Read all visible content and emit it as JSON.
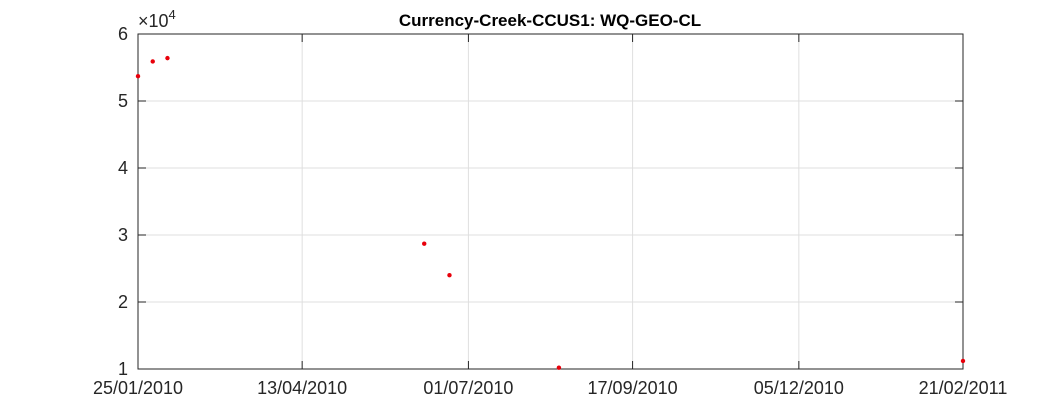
{
  "chart_data": {
    "type": "scatter",
    "title": "Currency-Creek-CCUS1: WQ-GEO-CL",
    "xlabel": "",
    "ylabel": "",
    "x_type": "date",
    "xlim": [
      "2010-01-25",
      "2011-02-21"
    ],
    "ylim": [
      10000,
      60000
    ],
    "y_exponent_label": "×10",
    "y_exponent_power": "4",
    "x_ticks": [
      "2010-01-25",
      "2010-04-13",
      "2010-07-01",
      "2010-09-17",
      "2010-12-05",
      "2011-02-21"
    ],
    "x_tick_labels": [
      "25/01/2010",
      "13/04/2010",
      "01/07/2010",
      "17/09/2010",
      "05/12/2010",
      "21/02/2011"
    ],
    "y_ticks": [
      10000,
      20000,
      30000,
      40000,
      50000,
      60000
    ],
    "y_tick_labels": [
      "1",
      "2",
      "3",
      "4",
      "5",
      "6"
    ],
    "grid": true,
    "marker_color": "#e8000b",
    "series": [
      {
        "x": [
          "2010-01-25",
          "2010-02-01",
          "2010-02-08",
          "2010-06-10",
          "2010-06-22",
          "2010-08-13",
          "2011-02-21"
        ],
        "y": [
          53700,
          55900,
          56400,
          28700,
          24000,
          10200,
          11200
        ]
      }
    ]
  }
}
